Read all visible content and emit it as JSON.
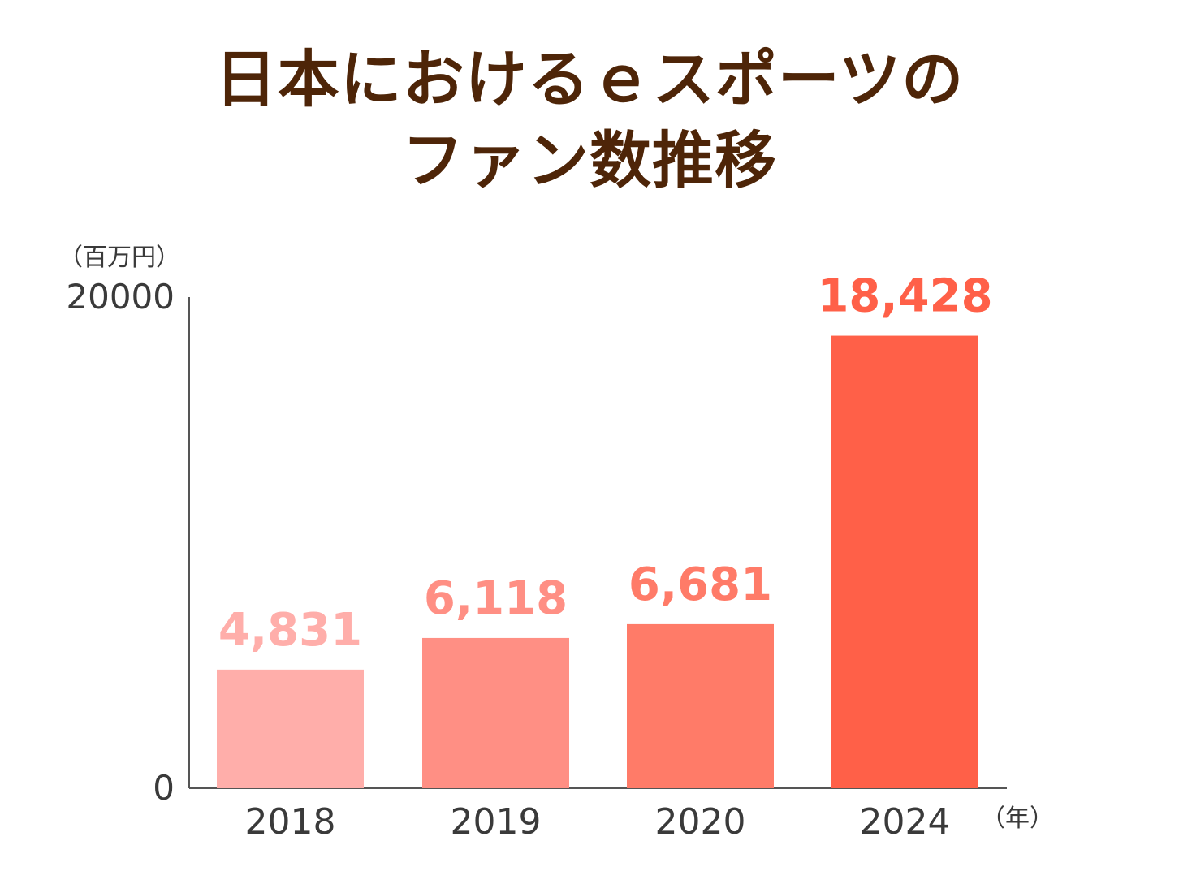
{
  "title_lines": [
    "日本におけるｅスポーツの",
    "ファン数推移"
  ],
  "chart_data": {
    "type": "bar",
    "title": "日本におけるｅスポーツのファン数推移",
    "categories": [
      "2018",
      "2019",
      "2020",
      "2024"
    ],
    "values": [
      4831,
      6118,
      6681,
      18428
    ],
    "value_labels": [
      "4,831",
      "6,118",
      "6,681",
      "18,428"
    ],
    "bar_colors": [
      "#ffaeaa",
      "#ff8f84",
      "#ff7b68",
      "#ff6048"
    ],
    "ylim": [
      0,
      20000
    ],
    "ytick_labels": [
      "0",
      "20000"
    ],
    "ylabel": "（百万円）",
    "xlabel": "（年）",
    "grid": false,
    "legend": "none"
  }
}
